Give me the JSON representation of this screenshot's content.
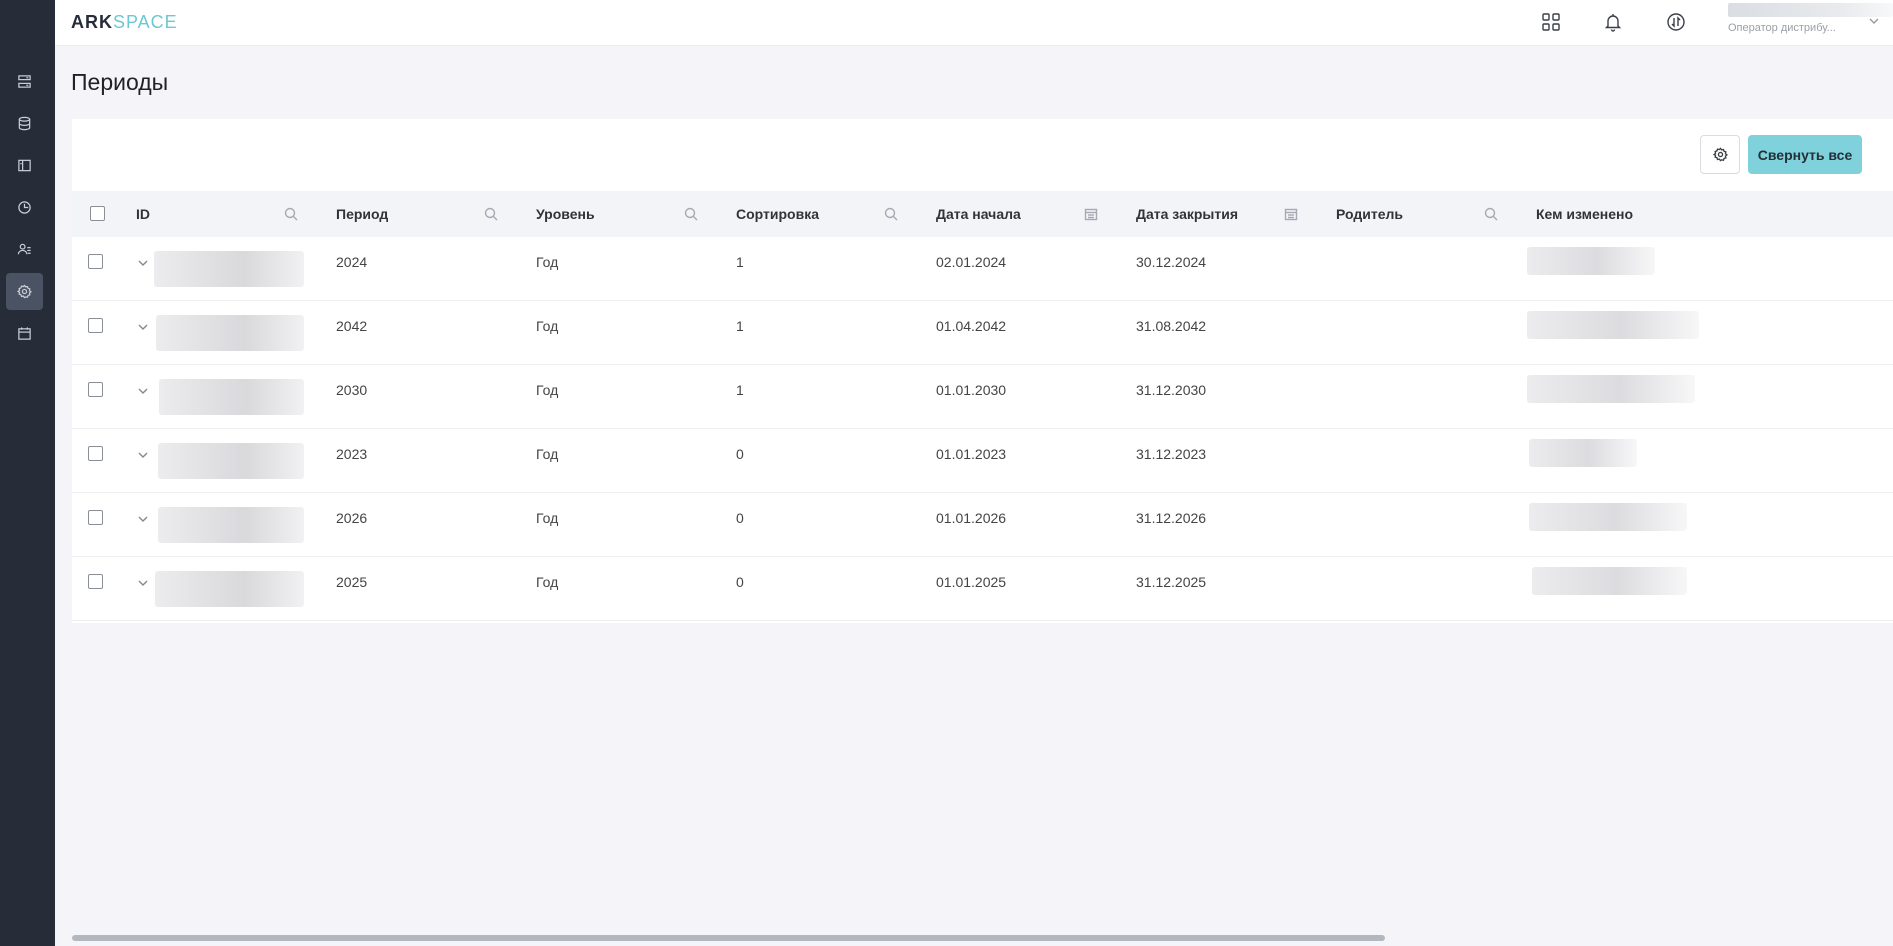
{
  "app": {
    "logo_part1": "ARK",
    "logo_part2": "SPACE"
  },
  "sidebar": {
    "items": [
      {
        "name": "sidebar-item-dashboard",
        "icon": "list-icon",
        "active": false
      },
      {
        "name": "sidebar-item-database",
        "icon": "database-icon",
        "active": false
      },
      {
        "name": "sidebar-item-layout",
        "icon": "layout-icon",
        "active": false
      },
      {
        "name": "sidebar-item-history",
        "icon": "clock-icon",
        "active": false
      },
      {
        "name": "sidebar-item-users",
        "icon": "users-icon",
        "active": false
      },
      {
        "name": "sidebar-item-settings",
        "icon": "gear-icon",
        "active": true
      },
      {
        "name": "sidebar-item-calendar",
        "icon": "calendar-icon",
        "active": false
      }
    ]
  },
  "header": {
    "icons": [
      "apps-grid-icon",
      "bell-icon",
      "sync-icon"
    ],
    "user_role": "Оператор дистрибу..."
  },
  "page": {
    "title": "Периоды"
  },
  "toolbar": {
    "collapse_label": "Свернуть все",
    "settings_icon": "gear-icon"
  },
  "table": {
    "columns": [
      {
        "label": "ID",
        "filter_icon": "search-icon"
      },
      {
        "label": "Период",
        "filter_icon": "search-icon"
      },
      {
        "label": "Уровень",
        "filter_icon": "search-icon"
      },
      {
        "label": "Сортировка",
        "filter_icon": "search-icon"
      },
      {
        "label": "Дата начала",
        "filter_icon": "calendar-icon"
      },
      {
        "label": "Дата закрытия",
        "filter_icon": "calendar-icon"
      },
      {
        "label": "Родитель",
        "filter_icon": "search-icon"
      },
      {
        "label": "Кем изменено",
        "filter_icon": ""
      }
    ],
    "rows": [
      {
        "period": "2024",
        "level": "Год",
        "sort": "1",
        "start": "02.01.2024",
        "end": "30.12.2024",
        "parent": ""
      },
      {
        "period": "2042",
        "level": "Год",
        "sort": "1",
        "start": "01.04.2042",
        "end": "31.08.2042",
        "parent": ""
      },
      {
        "period": "2030",
        "level": "Год",
        "sort": "1",
        "start": "01.01.2030",
        "end": "31.12.2030",
        "parent": ""
      },
      {
        "period": "2023",
        "level": "Год",
        "sort": "0",
        "start": "01.01.2023",
        "end": "31.12.2023",
        "parent": ""
      },
      {
        "period": "2026",
        "level": "Год",
        "sort": "0",
        "start": "01.01.2026",
        "end": "31.12.2026",
        "parent": ""
      },
      {
        "period": "2025",
        "level": "Год",
        "sort": "0",
        "start": "01.01.2025",
        "end": "31.12.2025",
        "parent": ""
      }
    ]
  },
  "colors": {
    "sidebar_bg": "#262d38",
    "accent": "#7fd2db",
    "page_bg": "#f5f5f9"
  }
}
